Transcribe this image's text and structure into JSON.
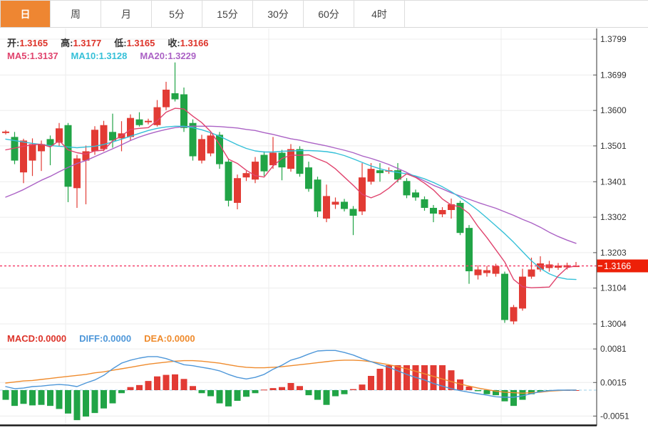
{
  "tabs": {
    "items": [
      {
        "label": "日",
        "active": true
      },
      {
        "label": "周",
        "active": false
      },
      {
        "label": "月",
        "active": false
      },
      {
        "label": "5分",
        "active": false
      },
      {
        "label": "15分",
        "active": false
      },
      {
        "label": "30分",
        "active": false
      },
      {
        "label": "60分",
        "active": false
      },
      {
        "label": "4时",
        "active": false
      }
    ],
    "active_bg": "#ee8632"
  },
  "main_legend": {
    "ohlc": [
      {
        "label": "开:",
        "value": "1.3165"
      },
      {
        "label": "高:",
        "value": "1.3177"
      },
      {
        "label": "低:",
        "value": "1.3165"
      },
      {
        "label": "收:",
        "value": "1.3166"
      }
    ],
    "ohlc_value_color": "#dd3329",
    "ma": [
      {
        "label": "MA5:",
        "value": "1.3137",
        "color": "#e0436d"
      },
      {
        "label": "MA10:",
        "value": "1.3128",
        "color": "#35c0d8"
      },
      {
        "label": "MA20:",
        "value": "1.3229",
        "color": "#ab62c5"
      }
    ]
  },
  "macd_legend": [
    {
      "label": "MACD:",
      "value": "0.0000",
      "color": "#dd3329"
    },
    {
      "label": "DIFF:",
      "value": "0.0000",
      "color": "#4e97d9"
    },
    {
      "label": "DEA:",
      "value": "0.0000",
      "color": "#ef8b2d"
    }
  ],
  "price_badge": {
    "text": "1.3166",
    "bg": "#ed2008"
  },
  "colors": {
    "up": "#e23b34",
    "down": "#21a446",
    "ma5": "#e0436d",
    "ma10": "#35c0d8",
    "ma20": "#ab62c5",
    "diff": "#4e97d9",
    "dea": "#ef8b2d",
    "grid": "#ececec",
    "axis_line": "#555",
    "tick_text": "#333",
    "last_price_line": "#f4426e",
    "zero_dash": "#9cd2e8",
    "bottom_line": "#1a1a1a"
  },
  "chart_data": {
    "type": "candlestick+macd",
    "title": "Daily FX candlestick chart with MA5/MA10/MA20 and MACD",
    "legend_position": "top-left",
    "main": {
      "y_ticks": [
        1.3799,
        1.3699,
        1.36,
        1.3501,
        1.3401,
        1.3302,
        1.3203,
        1.3104,
        1.3004
      ],
      "last_price": 1.3166,
      "candles_ochl": [
        [
          1.3537,
          1.3541,
          1.3545,
          1.3533
        ],
        [
          1.3526,
          1.346,
          1.354,
          1.345
        ],
        [
          1.3427,
          1.3516,
          1.3521,
          1.3397
        ],
        [
          1.346,
          1.3506,
          1.3522,
          1.3417
        ],
        [
          1.3486,
          1.3506,
          1.3516,
          1.3431
        ],
        [
          1.352,
          1.35,
          1.353,
          1.3447
        ],
        [
          1.351,
          1.355,
          1.3565,
          1.35
        ],
        [
          1.3559,
          1.3387,
          1.3565,
          1.3344
        ],
        [
          1.3383,
          1.3466,
          1.3476,
          1.3328
        ],
        [
          1.346,
          1.3486,
          1.3502,
          1.3338
        ],
        [
          1.3486,
          1.3546,
          1.3556,
          1.3476
        ],
        [
          1.3492,
          1.3559,
          1.3571,
          1.3486
        ],
        [
          1.354,
          1.3516,
          1.3591,
          1.3496
        ],
        [
          1.3522,
          1.3536,
          1.357,
          1.3486
        ],
        [
          1.3526,
          1.3579,
          1.3589,
          1.3516
        ],
        [
          1.3575,
          1.3559,
          1.3595,
          1.3555
        ],
        [
          1.3567,
          1.3571,
          1.3577,
          1.3561
        ],
        [
          1.3559,
          1.3609,
          1.3629,
          1.3555
        ],
        [
          1.3609,
          1.3658,
          1.368,
          1.3601
        ],
        [
          1.3648,
          1.3631,
          1.3734,
          1.3625
        ],
        [
          1.3645,
          1.3551,
          1.3664,
          1.354
        ],
        [
          1.3565,
          1.3472,
          1.3575,
          1.346
        ],
        [
          1.346,
          1.352,
          1.3532,
          1.3452
        ],
        [
          1.348,
          1.353,
          1.354,
          1.3472
        ],
        [
          1.3532,
          1.345,
          1.354,
          1.3437
        ],
        [
          1.3457,
          1.3348,
          1.3466,
          1.3332
        ],
        [
          1.3342,
          1.3411,
          1.3421,
          1.3324
        ],
        [
          1.3413,
          1.3425,
          1.3431,
          1.3403
        ],
        [
          1.3407,
          1.3457,
          1.347,
          1.3397
        ],
        [
          1.3476,
          1.343,
          1.3486,
          1.3417
        ],
        [
          1.3447,
          1.3482,
          1.3526,
          1.3437
        ],
        [
          1.3482,
          1.3441,
          1.349,
          1.3405
        ],
        [
          1.3437,
          1.3492,
          1.3506,
          1.3429
        ],
        [
          1.3492,
          1.3423,
          1.35,
          1.3415
        ],
        [
          1.3441,
          1.3381,
          1.3457,
          1.3373
        ],
        [
          1.3407,
          1.3318,
          1.3415,
          1.3302
        ],
        [
          1.3298,
          1.3361,
          1.3393,
          1.3288
        ],
        [
          1.3337,
          1.3345,
          1.3357,
          1.3325
        ],
        [
          1.3345,
          1.3325,
          1.3353,
          1.3318
        ],
        [
          1.3325,
          1.3306,
          1.3333,
          1.3252
        ],
        [
          1.3318,
          1.3413,
          1.3453,
          1.3308
        ],
        [
          1.3401,
          1.3437,
          1.3453,
          1.3393
        ],
        [
          1.3433,
          1.3425,
          1.3453,
          1.3401
        ],
        [
          1.3429,
          1.3433,
          1.3441,
          1.3423
        ],
        [
          1.3433,
          1.3407,
          1.3453,
          1.3399
        ],
        [
          1.3403,
          1.3363,
          1.3411,
          1.3355
        ],
        [
          1.3371,
          1.3357,
          1.3379,
          1.3348
        ],
        [
          1.3352,
          1.3328,
          1.336,
          1.332
        ],
        [
          1.3328,
          1.3312,
          1.3336,
          1.3288
        ],
        [
          1.331,
          1.3322,
          1.333,
          1.3302
        ],
        [
          1.3322,
          1.3338,
          1.3354,
          1.3298
        ],
        [
          1.3342,
          1.3258,
          1.3348,
          1.3252
        ],
        [
          1.3272,
          1.3151,
          1.328,
          1.3116
        ],
        [
          1.314,
          1.3156,
          1.3168,
          1.3128
        ],
        [
          1.3146,
          1.3154,
          1.3166,
          1.3136
        ],
        [
          1.3144,
          1.3166,
          1.3172,
          1.3136
        ],
        [
          1.3144,
          1.3015,
          1.315,
          1.3007
        ],
        [
          1.3011,
          1.3051,
          1.3057,
          1.3003
        ],
        [
          1.3047,
          1.3136,
          1.3158,
          1.3041
        ],
        [
          1.3136,
          1.3156,
          1.3189,
          1.313
        ],
        [
          1.3156,
          1.3173,
          1.3193,
          1.315
        ],
        [
          1.316,
          1.317,
          1.318,
          1.315
        ],
        [
          1.3161,
          1.3167,
          1.3174,
          1.3155
        ],
        [
          1.3162,
          1.3168,
          1.3175,
          1.3156
        ],
        [
          1.3165,
          1.3166,
          1.3177,
          1.3165
        ]
      ],
      "ma5": [
        1.349,
        1.3495,
        1.35,
        1.3504,
        1.3506,
        1.3498,
        1.3516,
        1.349,
        1.3482,
        1.3478,
        1.3487,
        1.3489,
        1.3515,
        1.3529,
        1.3547,
        1.355,
        1.3552,
        1.3571,
        1.3595,
        1.3606,
        1.3604,
        1.3584,
        1.3566,
        1.3541,
        1.3505,
        1.3464,
        1.3452,
        1.3433,
        1.3418,
        1.3414,
        1.3445,
        1.3466,
        1.3475,
        1.3475,
        1.3476,
        1.3465,
        1.3455,
        1.3437,
        1.3414,
        1.3391,
        1.3366,
        1.3356,
        1.3366,
        1.3383,
        1.3405,
        1.3423,
        1.3413,
        1.3397,
        1.3378,
        1.3353,
        1.3336,
        1.3331,
        1.3312,
        1.3276,
        1.3245,
        1.3211,
        1.3177,
        1.3128,
        1.3108,
        1.3105,
        1.3106,
        1.3107,
        1.3138,
        1.3161,
        1.3166
      ],
      "ma10": [
        1.352,
        1.3516,
        1.3512,
        1.3508,
        1.3505,
        1.3502,
        1.35,
        1.3498,
        1.3496,
        1.3498,
        1.35,
        1.3505,
        1.3512,
        1.352,
        1.3528,
        1.3536,
        1.3544,
        1.355,
        1.3554,
        1.3556,
        1.3556,
        1.3552,
        1.3546,
        1.3538,
        1.3528,
        1.3516,
        1.3504,
        1.3494,
        1.3487,
        1.3484,
        1.3484,
        1.3486,
        1.3487,
        1.3488,
        1.3488,
        1.3487,
        1.3485,
        1.3481,
        1.3474,
        1.3465,
        1.3455,
        1.3445,
        1.3437,
        1.3431,
        1.3427,
        1.3423,
        1.3417,
        1.3409,
        1.3399,
        1.3387,
        1.3373,
        1.3357,
        1.334,
        1.3321,
        1.33,
        1.3278,
        1.3256,
        1.3232,
        1.3206,
        1.318,
        1.3159,
        1.3144,
        1.3134,
        1.3129,
        1.3128
      ],
      "ma20": [
        1.3358,
        1.3368,
        1.3379,
        1.3392,
        1.3405,
        1.3416,
        1.3429,
        1.3441,
        1.3452,
        1.346,
        1.3471,
        1.3482,
        1.3493,
        1.3504,
        1.3516,
        1.3526,
        1.3534,
        1.3541,
        1.3547,
        1.3552,
        1.3555,
        1.3556,
        1.3556,
        1.3556,
        1.3555,
        1.3553,
        1.3551,
        1.3547,
        1.3544,
        1.3538,
        1.3533,
        1.3527,
        1.3521,
        1.3517,
        1.3511,
        1.3506,
        1.3501,
        1.3495,
        1.3489,
        1.3482,
        1.3473,
        1.3466,
        1.3458,
        1.3449,
        1.3438,
        1.3427,
        1.3415,
        1.3403,
        1.3391,
        1.3381,
        1.337,
        1.3361,
        1.3352,
        1.3343,
        1.3335,
        1.3327,
        1.3317,
        1.3307,
        1.3296,
        1.3286,
        1.3274,
        1.326,
        1.3248,
        1.3238,
        1.3229
      ]
    },
    "macd": {
      "y_ticks": [
        0.0081,
        0.0015,
        -0.0051
      ],
      "hist": [
        -0.0019,
        -0.0031,
        -0.0027,
        -0.003,
        -0.0029,
        -0.0031,
        -0.0037,
        -0.0046,
        -0.0059,
        -0.0052,
        -0.0045,
        -0.0036,
        -0.0026,
        -0.0006,
        0.0006,
        0.001,
        0.0018,
        0.0027,
        0.003,
        0.0031,
        0.0022,
        0.0008,
        -0.0006,
        -0.0012,
        -0.0026,
        -0.0032,
        -0.0021,
        -0.0013,
        -0.0006,
        0.0001,
        0.0004,
        0.0006,
        0.0014,
        0.0008,
        -0.001,
        -0.0019,
        -0.0029,
        -0.0012,
        -0.0008,
        0.0002,
        0.0011,
        0.0028,
        0.0042,
        0.0049,
        0.0049,
        0.0049,
        0.0049,
        0.0049,
        0.0049,
        0.0049,
        0.0039,
        0.0021,
        0.0007,
        -0.0002,
        -0.0008,
        -0.001,
        -0.0022,
        -0.0031,
        -0.0019,
        -0.0008,
        -0.0004,
        -0.0002,
        -0.0001,
        0.0,
        0.0
      ],
      "diff": [
        0.0007,
        0.0003,
        0.0004,
        0.0007,
        0.0008,
        0.001,
        0.0011,
        0.001,
        0.0007,
        0.0014,
        0.002,
        0.0029,
        0.0042,
        0.0053,
        0.0059,
        0.0063,
        0.0066,
        0.0066,
        0.0062,
        0.0056,
        0.005,
        0.0048,
        0.0045,
        0.0042,
        0.0038,
        0.0031,
        0.0025,
        0.0022,
        0.0025,
        0.0031,
        0.0041,
        0.0049,
        0.0059,
        0.0064,
        0.0071,
        0.0077,
        0.0078,
        0.0078,
        0.0074,
        0.0069,
        0.0062,
        0.0056,
        0.005,
        0.0045,
        0.0038,
        0.0031,
        0.0025,
        0.002,
        0.0013,
        0.0008,
        0.0003,
        -0.0001,
        -0.0004,
        -0.0007,
        -0.001,
        -0.0013,
        -0.0014,
        -0.0014,
        -0.0011,
        -0.0007,
        -0.0003,
        -0.0001,
        0.0,
        0.0,
        0.0
      ],
      "dea": [
        0.0014,
        0.0016,
        0.0018,
        0.0019,
        0.0021,
        0.0023,
        0.0025,
        0.0027,
        0.0029,
        0.0031,
        0.0034,
        0.0036,
        0.0039,
        0.0042,
        0.0045,
        0.0048,
        0.0051,
        0.0053,
        0.0055,
        0.0057,
        0.0058,
        0.0058,
        0.0057,
        0.0055,
        0.0053,
        0.005,
        0.0047,
        0.0045,
        0.0044,
        0.0044,
        0.0045,
        0.0046,
        0.0048,
        0.005,
        0.0052,
        0.0054,
        0.0056,
        0.0058,
        0.0059,
        0.0059,
        0.0058,
        0.0056,
        0.0053,
        0.005,
        0.0046,
        0.0042,
        0.0037,
        0.0032,
        0.0027,
        0.0022,
        0.0017,
        0.0012,
        0.0008,
        0.0004,
        0.0001,
        -0.0002,
        -0.0004,
        -0.0005,
        -0.0006,
        -0.0005,
        -0.0004,
        -0.0002,
        -0.0001,
        0.0,
        0.0
      ]
    }
  }
}
